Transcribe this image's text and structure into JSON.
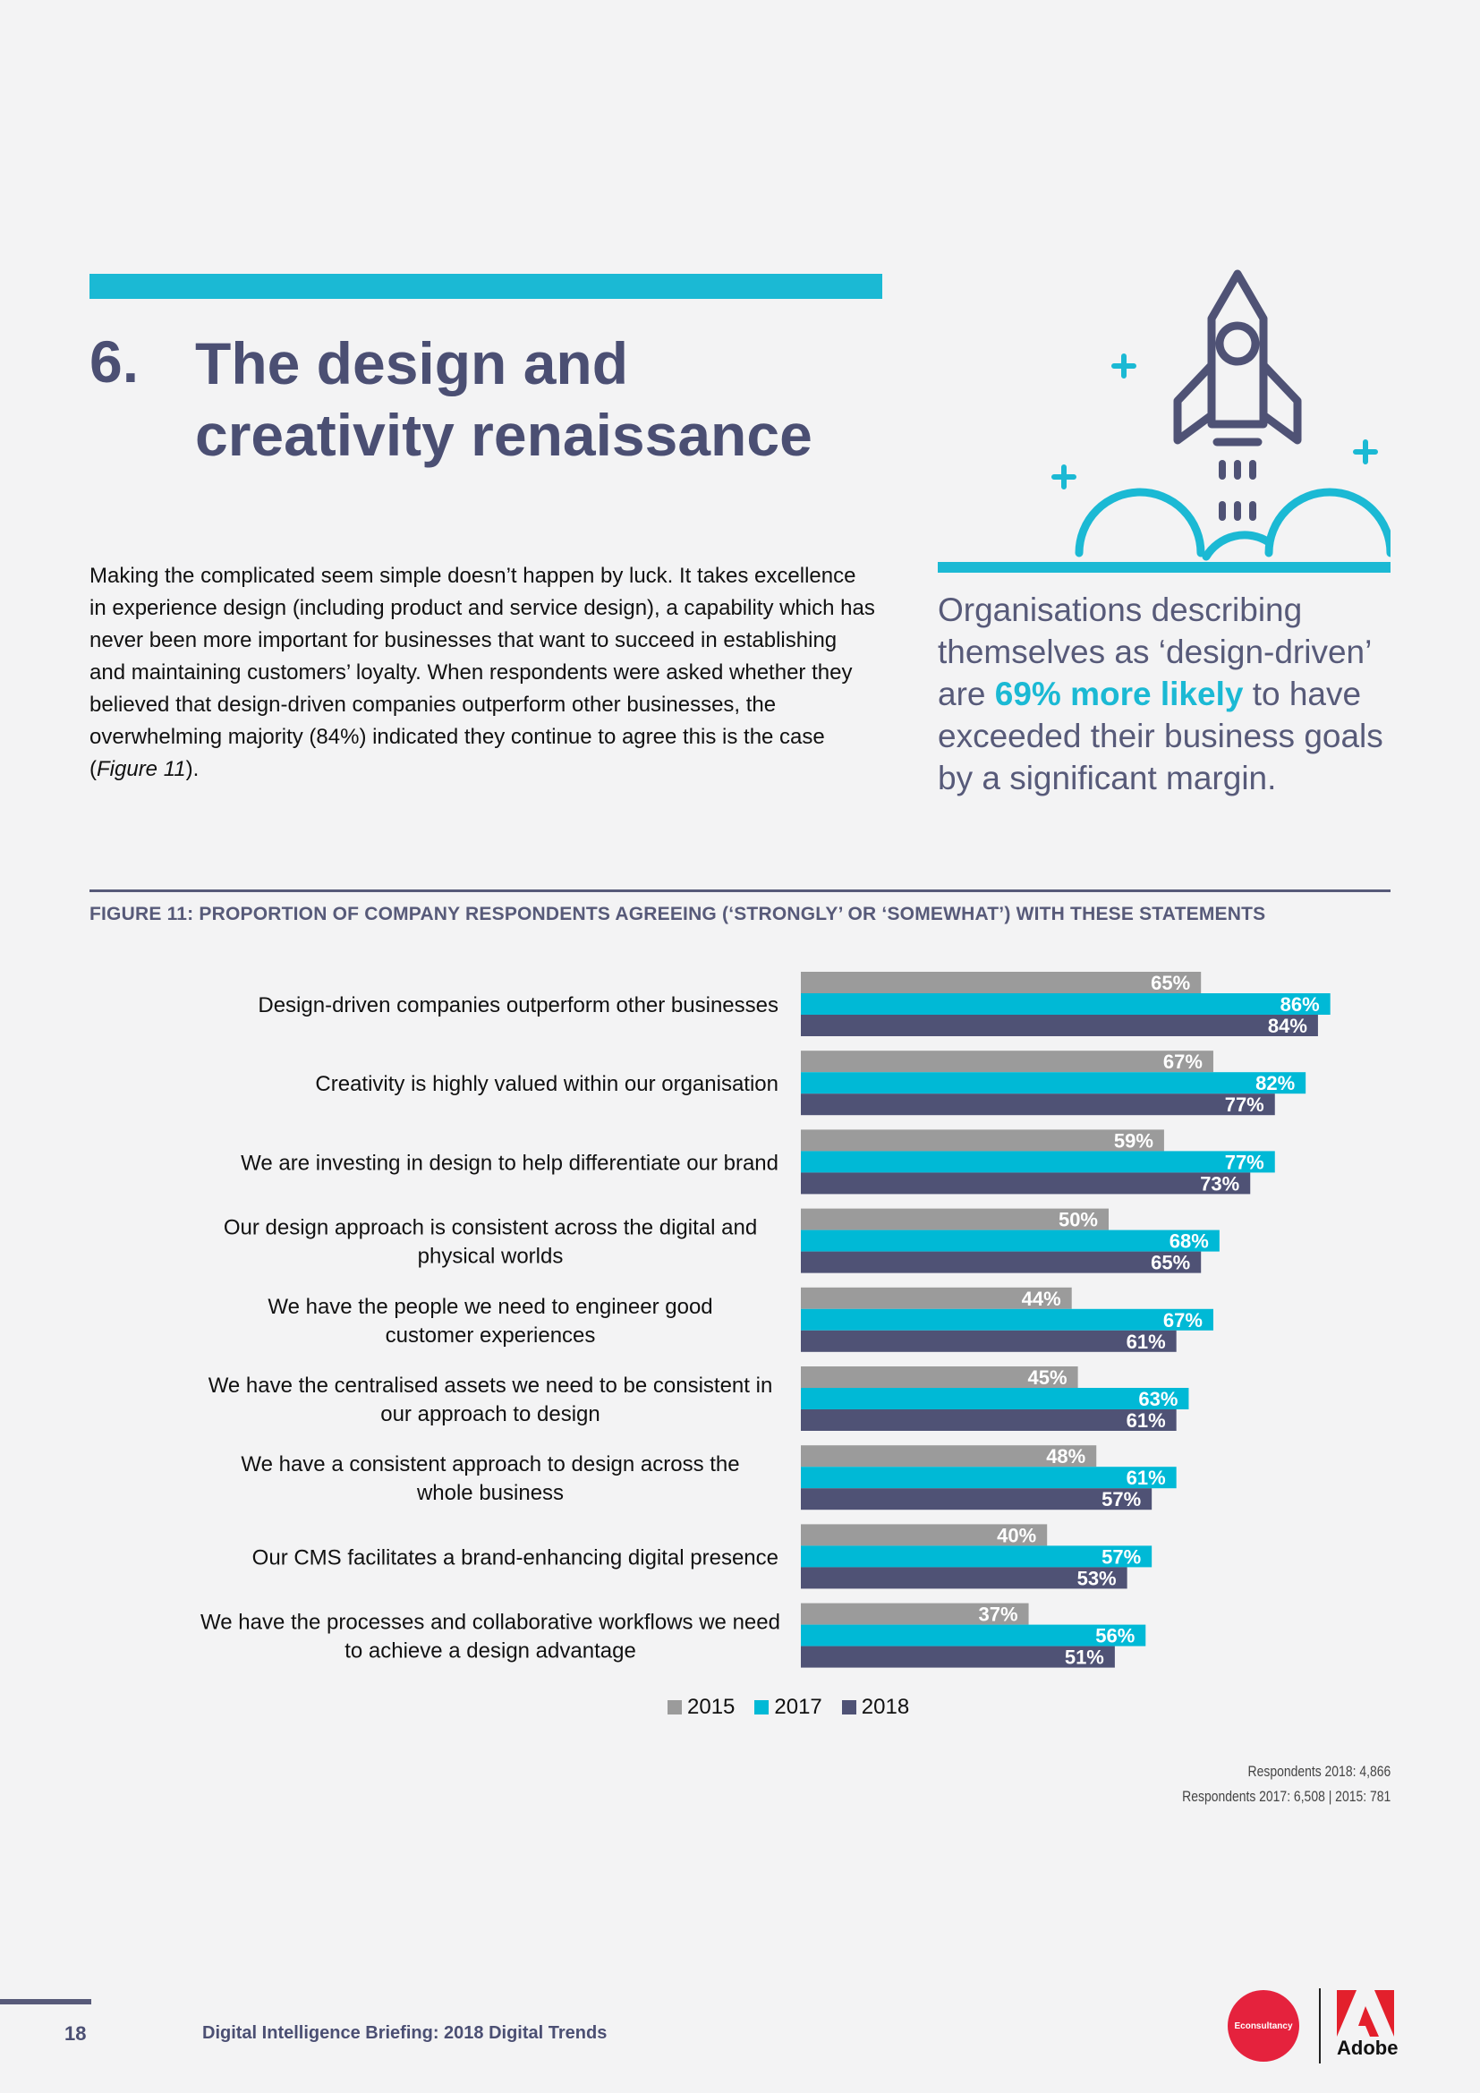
{
  "section": {
    "number": "6.",
    "title": "The design and creativity renaissance"
  },
  "intro": {
    "text_before": "Making the complicated seem simple doesn’t happen by luck. It takes excellence in experience design (including product and service design), a capability which has never been more important for businesses that want to succeed in establishing and maintaining customers’ loyalty. When respondents were asked whether they believed that design-driven companies outperform other businesses, the overwhelming majority (84%) indicated they continue to agree this is the case (",
    "figure_ref": "Figure 11",
    "text_after": ")."
  },
  "callout": {
    "before": "Organisations describing themselves as ‘design-driven’ are ",
    "highlight": "69% more likely",
    "after": " to have exceeded their business goals by a significant margin."
  },
  "figure": {
    "title": "FIGURE 11: PROPORTION OF COMPANY RESPONDENTS AGREEING (‘STRONGLY’ OR ‘SOMEWHAT’) WITH THESE STATEMENTS"
  },
  "chart_data": {
    "type": "bar",
    "orientation": "horizontal",
    "unit": "%",
    "categories": [
      [
        "Design-driven companies outperform other businesses"
      ],
      [
        "Creativity is highly valued within our organisation"
      ],
      [
        "We are investing in design to help differentiate our brand"
      ],
      [
        "Our design approach is consistent across the digital and",
        "physical worlds"
      ],
      [
        "We have the people we need to engineer good",
        "customer experiences"
      ],
      [
        "We have the centralised assets we need to be consistent in",
        "our approach to design"
      ],
      [
        "We have a consistent approach to design across the",
        "whole business"
      ],
      [
        "Our CMS facilitates a brand-enhancing digital presence"
      ],
      [
        "We have the processes and collaborative workflows we need",
        "to achieve a design advantage"
      ]
    ],
    "series": [
      {
        "name": "2015",
        "color": "#9b9b9b",
        "values": [
          65,
          67,
          59,
          50,
          44,
          45,
          48,
          40,
          37
        ]
      },
      {
        "name": "2017",
        "color": "#00b9d6",
        "values": [
          86,
          82,
          77,
          68,
          67,
          63,
          61,
          57,
          56
        ]
      },
      {
        "name": "2018",
        "color": "#4f5275",
        "values": [
          84,
          77,
          73,
          65,
          61,
          61,
          57,
          53,
          51
        ]
      }
    ],
    "legend": "bottom",
    "grid": false
  },
  "respondents": {
    "line1": "Respondents 2018: 4,866",
    "line2": "Respondents 2017: 6,508 | 2015: 781"
  },
  "footer": {
    "page_number": "18",
    "title": "Digital Intelligence Briefing: 2018 Digital Trends",
    "econ_logo_text": "Econsultancy",
    "adobe_text": "Adobe"
  }
}
